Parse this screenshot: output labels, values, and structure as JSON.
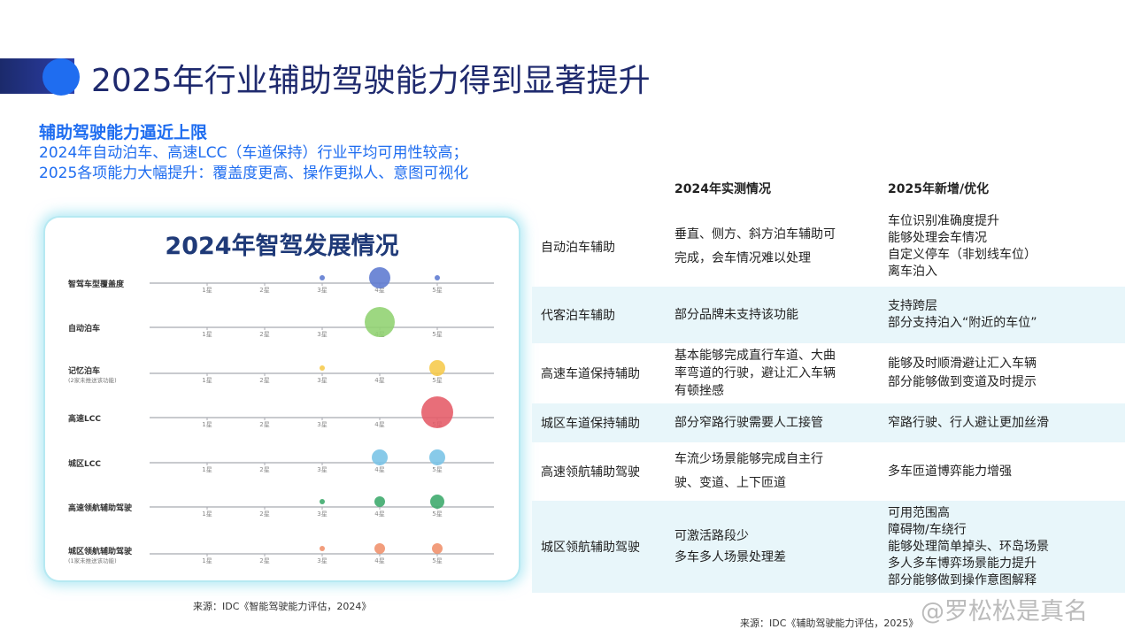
{
  "page": {
    "title": "2025年行业辅助驾驶能力得到显著提升"
  },
  "intro": {
    "heading": "辅助驾驶能力逼近上限",
    "lines": [
      "2024年自动泊车、高速LCC（车道保持）行业平均可用性较高；",
      "2025各项能力大幅提升：覆盖度更高、操作更拟人、意图可视化"
    ]
  },
  "chart": {
    "title": "2024年智驾发展情况",
    "source": "来源：IDC《智能驾驶能力评估，2024》"
  },
  "chart_data": {
    "type": "scatter",
    "title": "2024年智驾发展情况",
    "categories": [
      "1星",
      "2星",
      "3星",
      "4星",
      "5星"
    ],
    "rows": [
      {
        "label": "智驾车型覆盖度",
        "sublabel": "",
        "color": "#5c79d0",
        "bubbles": [
          {
            "x": "3星",
            "size": 3
          },
          {
            "x": "4星",
            "size": 12
          },
          {
            "x": "5星",
            "size": 3
          }
        ]
      },
      {
        "label": "自动泊车",
        "sublabel": "",
        "color": "#8fd16f",
        "bubbles": [
          {
            "x": "4星",
            "size": 17
          }
        ]
      },
      {
        "label": "记忆泊车",
        "sublabel": "(2家未推送该功能)",
        "color": "#f6c94a",
        "bubbles": [
          {
            "x": "3星",
            "size": 3
          },
          {
            "x": "5星",
            "size": 9
          }
        ]
      },
      {
        "label": "高速LCC",
        "sublabel": "",
        "color": "#e55a66",
        "bubbles": [
          {
            "x": "5星",
            "size": 18
          }
        ]
      },
      {
        "label": "城区LCC",
        "sublabel": "",
        "color": "#78c3e6",
        "bubbles": [
          {
            "x": "4星",
            "size": 9
          },
          {
            "x": "5星",
            "size": 9
          }
        ]
      },
      {
        "label": "高速领航辅助驾驶",
        "sublabel": "",
        "color": "#3aa96a",
        "bubbles": [
          {
            "x": "3星",
            "size": 3
          },
          {
            "x": "4星",
            "size": 6
          },
          {
            "x": "5星",
            "size": 8
          }
        ]
      },
      {
        "label": "城区领航辅助驾驶",
        "sublabel": "(1家未推送该功能)",
        "color": "#f0906a",
        "bubbles": [
          {
            "x": "3星",
            "size": 3
          },
          {
            "x": "4星",
            "size": 6
          },
          {
            "x": "5星",
            "size": 6
          }
        ]
      }
    ]
  },
  "table": {
    "head": {
      "col2": "2024年实测情况",
      "col3": "2025年新增/优化"
    },
    "rows": [
      {
        "name": "自动泊车辅助",
        "y2024": [
          "垂直、侧方、斜方泊车辅助可",
          "完成，会车情况难以处理"
        ],
        "y2025": [
          "车位识别准确度提升",
          "能够处理会车情况",
          "自定义停车（非划线车位）",
          "离车泊入"
        ]
      },
      {
        "name": "代客泊车辅助",
        "y2024": [
          "部分品牌未支持该功能"
        ],
        "y2025": [
          "支持跨层",
          "部分支持泊入“附近的车位”"
        ]
      },
      {
        "name": "高速车道保持辅助",
        "y2024": [
          "基本能够完成直行车道、大曲",
          "率弯道的行驶，避让汇入车辆",
          "有顿挫感"
        ],
        "y2025": [
          "能够及时顺滑避让汇入车辆",
          "部分能够做到变道及时提示"
        ]
      },
      {
        "name": "城区车道保持辅助",
        "y2024": [
          "部分窄路行驶需要人工接管"
        ],
        "y2025": [
          "窄路行驶、行人避让更加丝滑"
        ]
      },
      {
        "name": "高速领航辅助驾驶",
        "y2024": [
          "车流少场景能够完成自主行",
          "驶、变道、上下匝道"
        ],
        "y2025": [
          "多车匝道博弈能力增强"
        ]
      },
      {
        "name": "城区领航辅助驾驶",
        "y2024": [
          "可激活路段少",
          "多车多人场景处理差"
        ],
        "y2025": [
          "可用范围高",
          "障碍物/车绕行",
          "能够处理简单掉头、环岛场景",
          "多人多车博弈场景能力提升",
          "部分能够做到操作意图解释"
        ]
      }
    ],
    "source": "来源：IDC《辅助驾驶能力评估，2025》"
  },
  "watermark": "@罗松松是真名"
}
